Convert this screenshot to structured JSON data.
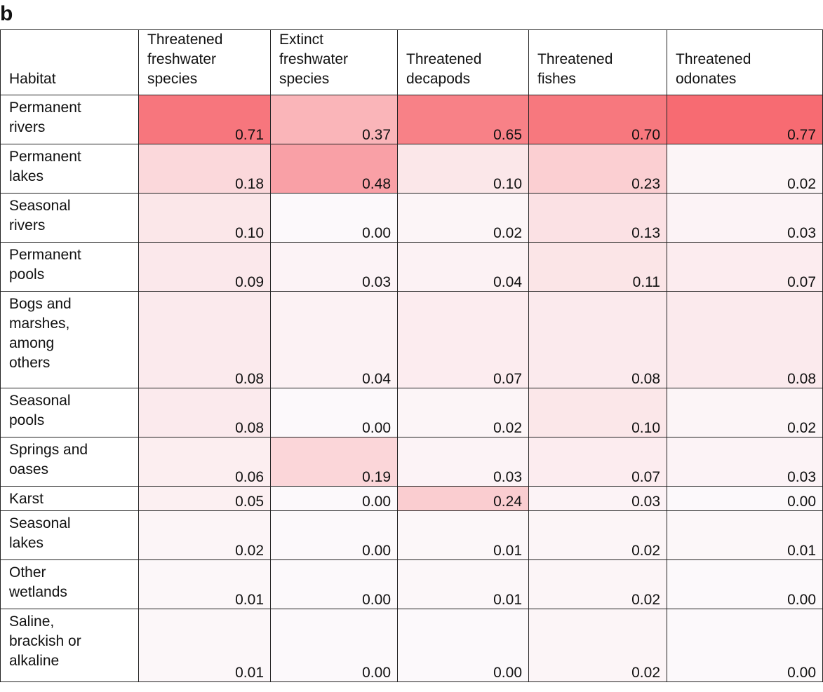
{
  "panel_label": "b",
  "chart_data": {
    "type": "heatmap",
    "row_header": "Habitat",
    "columns": [
      "Threatened\nfreshwater\nspecies",
      "Extinct\nfreshwater\nspecies",
      "Threatened\ndecapods",
      "Threatened\nfishes",
      "Threatened\nodonates"
    ],
    "rows": [
      {
        "habitat": "Permanent\nrivers",
        "values": [
          "0.71",
          "0.37",
          "0.65",
          "0.70",
          "0.77"
        ]
      },
      {
        "habitat": "Permanent\nlakes",
        "values": [
          "0.18",
          "0.48",
          "0.10",
          "0.23",
          "0.02"
        ]
      },
      {
        "habitat": "Seasonal\nrivers",
        "values": [
          "0.10",
          "0.00",
          "0.02",
          "0.13",
          "0.03"
        ]
      },
      {
        "habitat": "Permanent\npools",
        "values": [
          "0.09",
          "0.03",
          "0.04",
          "0.11",
          "0.07"
        ]
      },
      {
        "habitat": "Bogs and\nmarshes,\namong\nothers",
        "values": [
          "0.08",
          "0.04",
          "0.07",
          "0.08",
          "0.08"
        ]
      },
      {
        "habitat": "Seasonal\npools",
        "values": [
          "0.08",
          "0.00",
          "0.02",
          "0.10",
          "0.02"
        ]
      },
      {
        "habitat": "Springs and\noases",
        "values": [
          "0.06",
          "0.19",
          "0.03",
          "0.07",
          "0.03"
        ]
      },
      {
        "habitat": "Karst",
        "values": [
          "0.05",
          "0.00",
          "0.24",
          "0.03",
          "0.00"
        ]
      },
      {
        "habitat": "Seasonal\nlakes",
        "values": [
          "0.02",
          "0.00",
          "0.01",
          "0.02",
          "0.01"
        ]
      },
      {
        "habitat": "Other\nwetlands",
        "values": [
          "0.01",
          "0.00",
          "0.01",
          "0.02",
          "0.00"
        ]
      },
      {
        "habitat": "Saline,\nbrackish or\nalkaline",
        "values": [
          "0.01",
          "0.00",
          "0.00",
          "0.02",
          "0.00"
        ]
      }
    ],
    "color_scale": {
      "low": "#fcf9fb",
      "high": "#f76b72",
      "domain": [
        0,
        0.77
      ]
    }
  }
}
